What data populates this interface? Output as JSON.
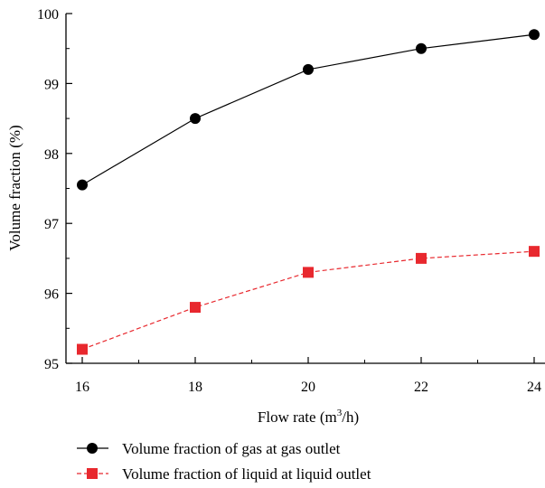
{
  "chart_data": {
    "type": "line",
    "x": [
      16,
      18,
      20,
      22,
      24
    ],
    "xlim": [
      16,
      24
    ],
    "ylim": [
      95,
      100
    ],
    "xticks": [
      "16",
      "18",
      "20",
      "22",
      "24"
    ],
    "yticks": [
      "95",
      "96",
      "97",
      "98",
      "99",
      "100"
    ],
    "xlabel_main": "Flow rate (m",
    "xlabel_sup": "3",
    "xlabel_tail": "/h)",
    "ylabel": "Volume fraction (%)",
    "grid": false,
    "legend_position": "bottom",
    "series": [
      {
        "name": "Volume fraction of gas at gas outlet",
        "values": [
          97.55,
          98.5,
          99.2,
          99.5,
          99.7
        ],
        "color": "#000000",
        "marker": "circle",
        "line_style": "solid"
      },
      {
        "name": "Volume fraction of liquid at liquid outlet",
        "values": [
          95.2,
          95.8,
          96.3,
          96.5,
          96.6
        ],
        "color": "#e8282e",
        "marker": "square",
        "line_style": "dashed"
      }
    ]
  }
}
